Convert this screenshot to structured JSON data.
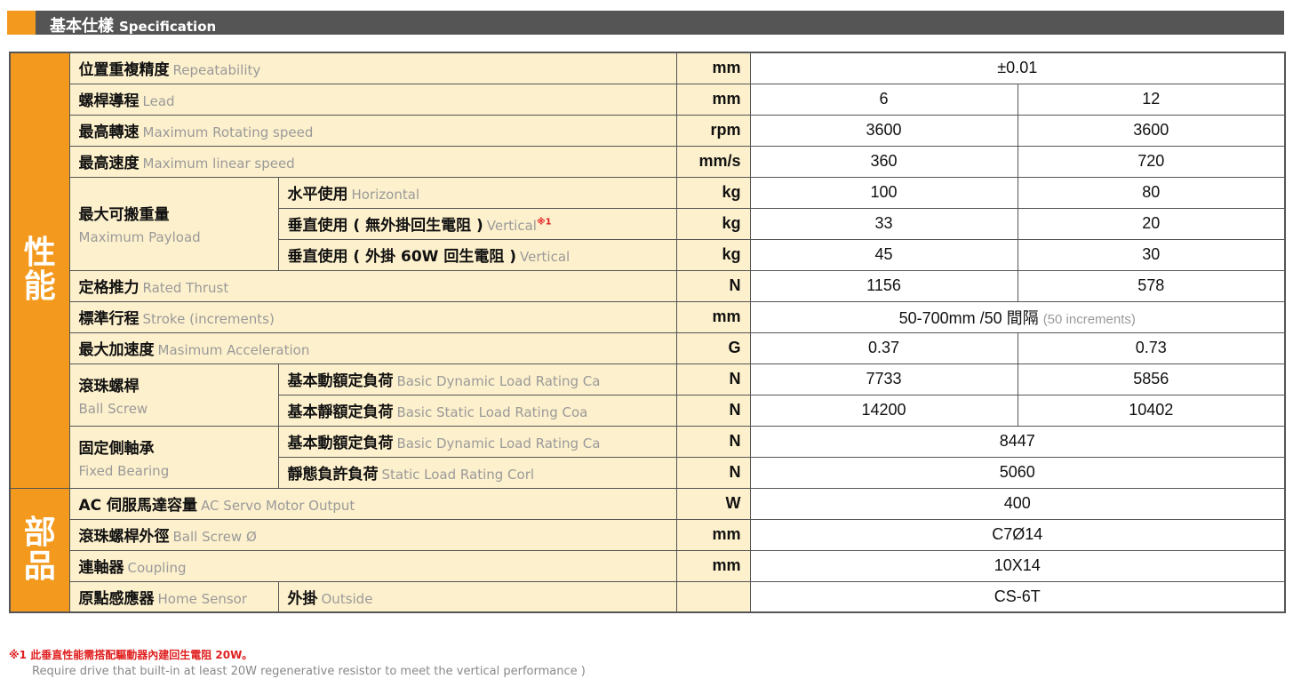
{
  "header": {
    "title_zh": "基本仕樣",
    "title_en": "Specification"
  },
  "colors": {
    "accent": "#f39a1e",
    "label_bg": "#fdf0cc",
    "header_bg": "#555555",
    "note": "#e02020"
  },
  "sections": [
    {
      "label": "性能",
      "groups": [
        {
          "zh": "位置重複精度",
          "en": "Repeatability",
          "unit": "mm",
          "values": [
            "±0.01"
          ]
        },
        {
          "zh": "螺桿導程",
          "en": "Lead",
          "unit": "mm",
          "values": [
            "6",
            "12"
          ]
        },
        {
          "zh": "最高轉速",
          "en": "Maximum Rotating speed",
          "unit": "rpm",
          "values": [
            "3600",
            "3600"
          ]
        },
        {
          "zh": "最高速度",
          "en": "Maximum linear speed",
          "unit": "mm/s",
          "values": [
            "360",
            "720"
          ]
        },
        {
          "zh": "最大可搬重量",
          "en": "Maximum Payload",
          "subs": [
            {
              "zh": "水平使用",
              "en": "Horizontal",
              "unit": "kg",
              "values": [
                "100",
                "80"
              ]
            },
            {
              "zh": "垂直使用 ( 無外掛回生電阻 )",
              "en": "Vertical",
              "sup": "※1",
              "unit": "kg",
              "values": [
                "33",
                "20"
              ]
            },
            {
              "zh": "垂直使用 ( 外掛 60W 回生電阻 )",
              "en": "Vertical",
              "unit": "kg",
              "values": [
                "45",
                "30"
              ]
            }
          ]
        },
        {
          "zh": "定格推力",
          "en": "Rated Thrust",
          "unit": "N",
          "values": [
            "1156",
            "578"
          ]
        },
        {
          "zh": "標準行程",
          "en": "Stroke (increments)",
          "unit": "mm",
          "values": [
            "50-700mm /50 間隔"
          ],
          "value_note": "(50 increments)"
        },
        {
          "zh": "最大加速度",
          "en": "Masimum Acceleration",
          "unit": "G",
          "values": [
            "0.37",
            "0.73"
          ]
        },
        {
          "zh": "滾珠螺桿",
          "en": "Ball Screw",
          "subs": [
            {
              "zh": "基本動額定負荷",
              "en": "Basic Dynamic Load Rating Ca",
              "unit": "N",
              "values": [
                "7733",
                "5856"
              ]
            },
            {
              "zh": "基本靜額定負荷",
              "en": "Basic Static Load Rating Coa",
              "unit": "N",
              "values": [
                "14200",
                "10402"
              ]
            }
          ]
        },
        {
          "zh": "固定側軸承",
          "en": "Fixed Bearing",
          "subs": [
            {
              "zh": "基本動額定負荷",
              "en": "Basic Dynamic Load Rating Ca",
              "unit": "N",
              "values": [
                "8447"
              ]
            },
            {
              "zh": "靜態負許負荷",
              "en": "Static Load Rating Corl",
              "unit": "N",
              "values": [
                "5060"
              ]
            }
          ]
        }
      ]
    },
    {
      "label": "部品",
      "groups": [
        {
          "zh": "AC 伺服馬達容量",
          "en": "AC Servo Motor Output",
          "unit": "W",
          "values": [
            "400"
          ]
        },
        {
          "zh": "滾珠螺桿外徑",
          "en": "Ball Screw Ø",
          "unit": "mm",
          "values": [
            "C7Ø14"
          ]
        },
        {
          "zh": "連軸器",
          "en": "Coupling",
          "unit": "mm",
          "values": [
            "10X14"
          ]
        },
        {
          "zh": "原點感應器",
          "en": "Home Sensor",
          "inline_subs": true,
          "subs": [
            {
              "zh": "外掛",
              "en": "Outside",
              "unit": "",
              "values": [
                "CS-6T"
              ]
            }
          ]
        }
      ]
    }
  ],
  "footnote": {
    "zh": "※1 此垂直性能需搭配驅動器內建回生電阻 20W。",
    "en": "Require drive that built-in at least 20W regenerative resistor to meet the vertical performance )"
  }
}
